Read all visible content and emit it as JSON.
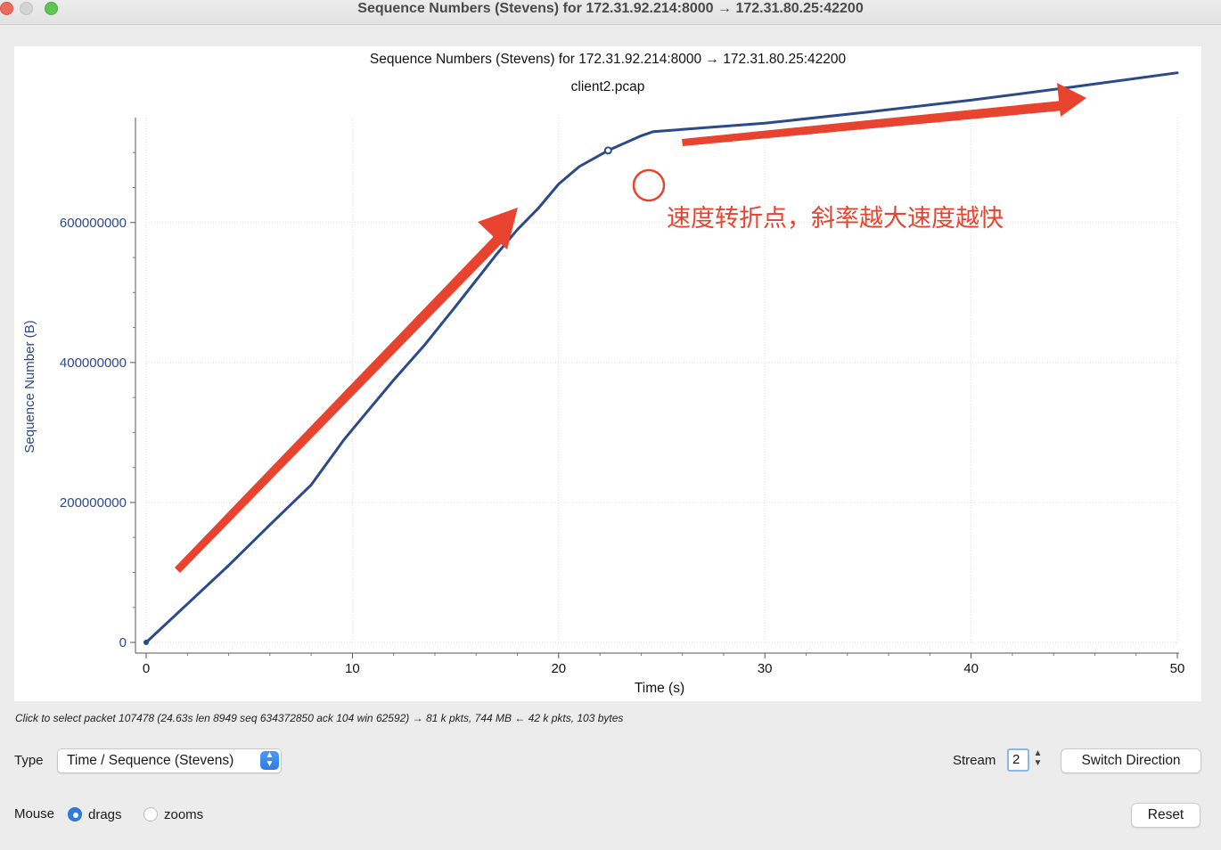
{
  "window": {
    "title": "Sequence Numbers (Stevens) for 172.31.92.214:8000 → 172.31.80.25:42200"
  },
  "chart_data": {
    "type": "line",
    "title": "Sequence Numbers (Stevens) for 172.31.92.214:8000 → 172.31.80.25:42200",
    "subtitle": "client2.pcap",
    "xlabel": "Time (s)",
    "ylabel": "Sequence Number (B)",
    "xlim": [
      0,
      50
    ],
    "ylim": [
      0,
      750000000
    ],
    "x_ticks": [
      "0",
      "10",
      "20",
      "30",
      "40",
      "50"
    ],
    "y_ticks": [
      "0",
      "200000000",
      "400000000",
      "600000000"
    ],
    "grid": true,
    "series": [
      {
        "color": "#2b4a8b",
        "x": [
          0,
          2,
          4,
          6,
          8,
          9.6,
          10.5,
          12,
          13.5,
          15,
          16.2,
          17,
          18,
          19,
          20,
          21,
          22.4,
          24,
          24.6,
          30,
          35,
          40,
          45,
          50
        ],
        "y": [
          0,
          55000000,
          110000000,
          168000000,
          225000000,
          290000000,
          322000000,
          375000000,
          425000000,
          480000000,
          525000000,
          555000000,
          590000000,
          620000000,
          655000000,
          680000000,
          703000000,
          724000000,
          730000000,
          742000000,
          758000000,
          775000000,
          794000000,
          814000000
        ]
      }
    ],
    "selected_point": {
      "x": 22.4,
      "y": 703000000
    },
    "annotation": {
      "text": "速度转折点，斜率越大速度越快",
      "color": "#e8432e"
    }
  },
  "status": {
    "hint": "Click to select packet 107478 (24.63s len 8949 seq 634372850 ack 104 win 62592) → 81 k pkts, 744 MB ← 42 k pkts, 103 bytes"
  },
  "controls": {
    "type_label": "Type",
    "type_value": "Time / Sequence (Stevens)",
    "stream_label": "Stream",
    "stream_value": "2",
    "switch_direction": "Switch Direction",
    "mouse_label": "Mouse",
    "mouse_drags": "drags",
    "mouse_zooms": "zooms",
    "reset": "Reset"
  }
}
